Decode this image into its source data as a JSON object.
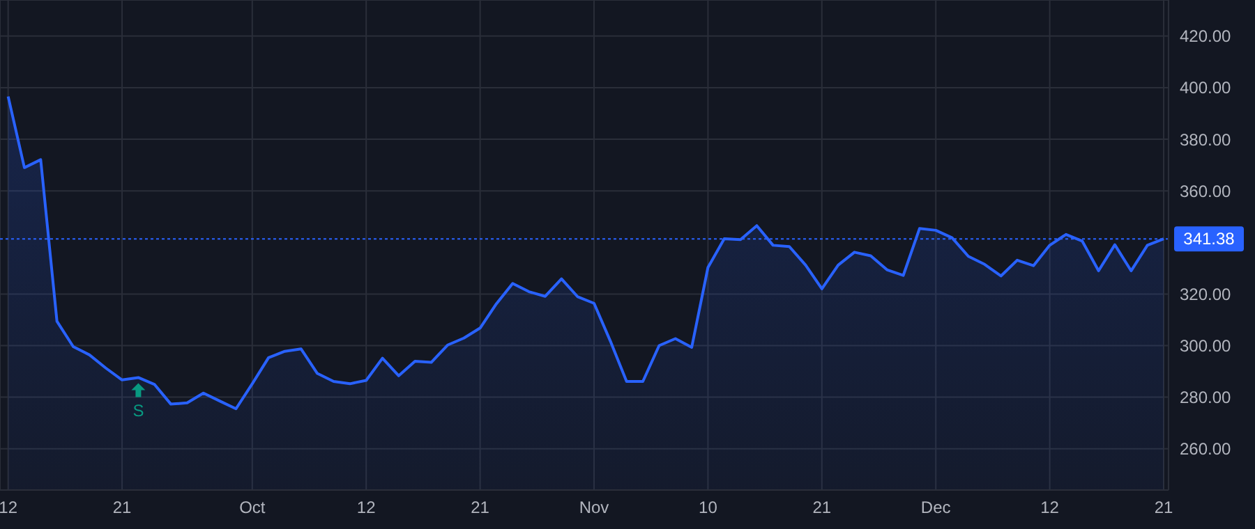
{
  "chart_data": {
    "type": "area",
    "categories": [
      "12",
      null,
      null,
      null,
      null,
      null,
      null,
      "21",
      null,
      null,
      null,
      null,
      null,
      null,
      null,
      "Oct",
      null,
      null,
      null,
      null,
      null,
      null,
      "12",
      null,
      null,
      null,
      null,
      null,
      null,
      "21",
      null,
      null,
      null,
      null,
      null,
      null,
      "Nov",
      null,
      null,
      null,
      null,
      null,
      null,
      "10",
      null,
      null,
      null,
      null,
      null,
      null,
      "21",
      null,
      null,
      null,
      null,
      null,
      null,
      "Dec",
      null,
      null,
      null,
      null,
      null,
      null,
      "12",
      null,
      null,
      null,
      null,
      null,
      null,
      "21"
    ],
    "series": [
      {
        "color": "#2962ff",
        "values": [
          396.6,
          369.0,
          372.1,
          309.4,
          299.6,
          296.4,
          291.3,
          286.7,
          287.6,
          284.9,
          277.3,
          277.8,
          281.6,
          278.5,
          275.5,
          285.2,
          295.3,
          297.8,
          298.7,
          289.2,
          286.1,
          285.2,
          286.5,
          295.1,
          288.3,
          293.9,
          293.5,
          300.2,
          302.9,
          306.8,
          316.2,
          324.1,
          320.9,
          319.1,
          325.9,
          318.9,
          316.4,
          301.8,
          286.1,
          286.1,
          300.0,
          302.7,
          299.3,
          330.3,
          341.4,
          341.1,
          346.5,
          338.9,
          338.4,
          331.2,
          322.0,
          331.2,
          336.2,
          334.8,
          329.4,
          327.2,
          345.4,
          344.7,
          341.8,
          334.6,
          331.5,
          327.0,
          333.1,
          331.0,
          338.9,
          343.1,
          340.5,
          329.0,
          339.1,
          329.0,
          338.9,
          341.4
        ]
      }
    ],
    "ylim": [
      244,
      434
    ],
    "yticks": [
      {
        "value": 260,
        "label": "260.00"
      },
      {
        "value": 280,
        "label": "280.00"
      },
      {
        "value": 300,
        "label": "300.00"
      },
      {
        "value": 320,
        "label": "320.00"
      },
      {
        "value": 360,
        "label": "360.00"
      },
      {
        "value": 380,
        "label": "380.00"
      },
      {
        "value": 400,
        "label": "400.00"
      },
      {
        "value": 420,
        "label": "420.00"
      }
    ],
    "ref_lines": [
      {
        "axis": "y",
        "value": 341.38,
        "label": "341.38",
        "color": "#2962ff",
        "line_style": "dotted"
      }
    ],
    "annotations": [
      "S"
    ],
    "grid": true,
    "legend": false,
    "marker": "none",
    "line_style": "solid"
  }
}
